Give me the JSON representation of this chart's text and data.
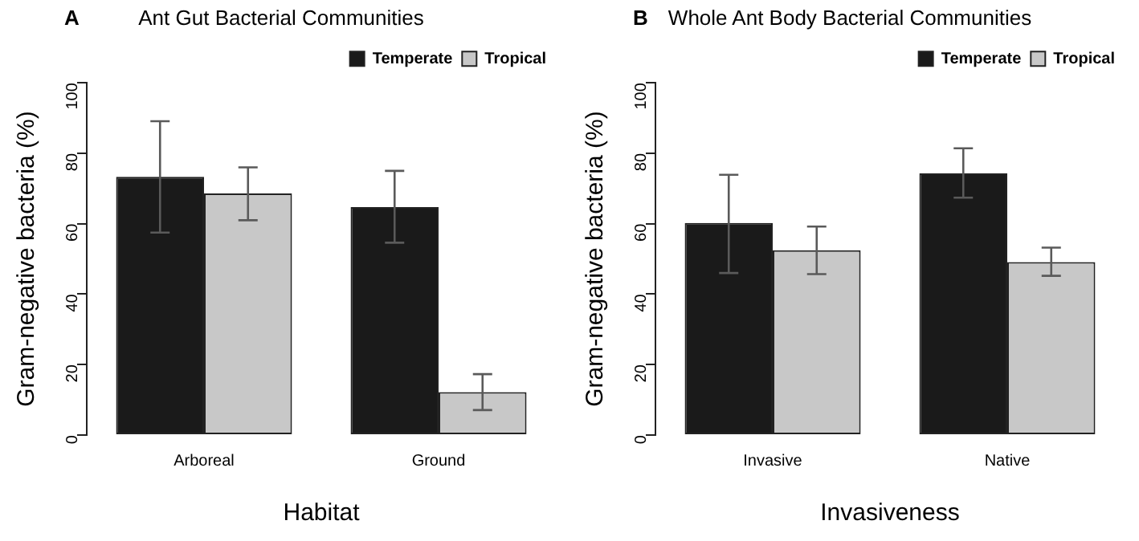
{
  "chart_data": [
    {
      "type": "bar",
      "title": "Ant Gut Bacterial Communities",
      "annotations": [
        "A"
      ],
      "xlabel": "Habitat",
      "ylabel": "Gram-negative bacteria (%)",
      "categories": [
        "Arboreal",
        "Ground"
      ],
      "ylim": [
        0,
        100
      ],
      "yticks": [
        0,
        20,
        40,
        60,
        80,
        100
      ],
      "grid": false,
      "legend": "top right",
      "series": [
        {
          "name": "Temperate",
          "color": "#1a1a1a",
          "values": [
            73.3,
            64.7
          ],
          "errors": [
            [
              57.5,
              89.1
            ],
            [
              54.6,
              75
            ]
          ]
        },
        {
          "name": "Tropical",
          "color": "#c8c8c8",
          "values": [
            68.6,
            12.2
          ],
          "errors": [
            [
              61,
              76
            ],
            [
              7.1,
              17.3
            ]
          ]
        }
      ]
    },
    {
      "type": "bar",
      "title": "Whole Ant Body Bacterial Communities",
      "annotations": [
        "B"
      ],
      "xlabel": "Invasiveness",
      "ylabel": "Gram-negative bacteria (%)",
      "categories": [
        "Invasive",
        "Native"
      ],
      "ylim": [
        0,
        100
      ],
      "yticks": [
        0,
        20,
        40,
        60,
        80,
        100
      ],
      "grid": false,
      "legend": "top right",
      "series": [
        {
          "name": "Temperate",
          "color": "#1a1a1a",
          "values": [
            60.2,
            74.3
          ],
          "errors": [
            [
              46,
              73.9
            ],
            [
              67.4,
              81.4
            ]
          ]
        },
        {
          "name": "Tropical",
          "color": "#c8c8c8",
          "values": [
            52.5,
            49.1
          ],
          "errors": [
            [
              45.7,
              59.2
            ],
            [
              45.2,
              53.2
            ]
          ]
        }
      ]
    }
  ]
}
